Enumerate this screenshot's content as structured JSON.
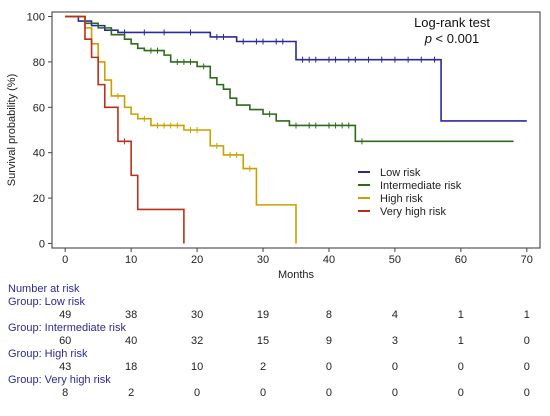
{
  "chart_data": {
    "type": "line",
    "step": true,
    "title": "",
    "annotation": {
      "line1": "Log-rank test",
      "p_italic": "p",
      "p_rest": " < 0.001"
    },
    "xlabel": "Months",
    "ylabel": "Survival probability (%)",
    "xlim": [
      -2,
      72
    ],
    "ylim": [
      -2,
      102
    ],
    "xticks": [
      0,
      10,
      20,
      30,
      40,
      50,
      60,
      70
    ],
    "yticks": [
      0,
      20,
      40,
      60,
      80,
      100
    ],
    "legend_position": "center-right",
    "series": [
      {
        "name": "Low risk",
        "color": "#2a2a9a",
        "steps": [
          [
            0,
            100
          ],
          [
            2,
            98
          ],
          [
            4,
            96
          ],
          [
            6,
            94
          ],
          [
            8,
            93
          ],
          [
            22,
            91
          ],
          [
            26,
            89
          ],
          [
            35,
            81
          ],
          [
            57,
            54
          ],
          [
            70,
            54
          ]
        ],
        "censored": [
          [
            9,
            93
          ],
          [
            12,
            93
          ],
          [
            15,
            93
          ],
          [
            19,
            93
          ],
          [
            23,
            91
          ],
          [
            24,
            91
          ],
          [
            27,
            89
          ],
          [
            29,
            89
          ],
          [
            30,
            89
          ],
          [
            32,
            89
          ],
          [
            33,
            89
          ],
          [
            36,
            81
          ],
          [
            37,
            81
          ],
          [
            38,
            81
          ],
          [
            40,
            81
          ],
          [
            41,
            81
          ],
          [
            43,
            81
          ],
          [
            44,
            81
          ],
          [
            46,
            81
          ],
          [
            48,
            81
          ],
          [
            50,
            81
          ],
          [
            52,
            81
          ],
          [
            54,
            81
          ],
          [
            56,
            81
          ],
          [
            57,
            56
          ]
        ],
        "end_x": 70
      },
      {
        "name": "Intermediate risk",
        "color": "#2f6a1c",
        "steps": [
          [
            0,
            100
          ],
          [
            3,
            97
          ],
          [
            5,
            95
          ],
          [
            7,
            92
          ],
          [
            9,
            90
          ],
          [
            10,
            88
          ],
          [
            11,
            86
          ],
          [
            12,
            85
          ],
          [
            15,
            83
          ],
          [
            16,
            80
          ],
          [
            20,
            78
          ],
          [
            22,
            73
          ],
          [
            23,
            70
          ],
          [
            24,
            68
          ],
          [
            25,
            64
          ],
          [
            26,
            61
          ],
          [
            28,
            59
          ],
          [
            30,
            57
          ],
          [
            32,
            54
          ],
          [
            34,
            52
          ],
          [
            44,
            45
          ],
          [
            68,
            45
          ]
        ],
        "censored": [
          [
            13,
            85
          ],
          [
            14,
            85
          ],
          [
            17,
            80
          ],
          [
            18,
            80
          ],
          [
            19,
            80
          ],
          [
            21,
            78
          ],
          [
            31,
            57
          ],
          [
            35,
            52
          ],
          [
            37,
            52
          ],
          [
            38,
            52
          ],
          [
            40,
            52
          ],
          [
            41,
            52
          ],
          [
            42,
            52
          ],
          [
            43,
            52
          ],
          [
            45,
            45
          ]
        ],
        "end_x": 68
      },
      {
        "name": "High risk",
        "color": "#c8a000",
        "steps": [
          [
            0,
            100
          ],
          [
            3,
            95
          ],
          [
            4,
            88
          ],
          [
            5,
            80
          ],
          [
            6,
            72
          ],
          [
            7,
            65
          ],
          [
            9,
            60
          ],
          [
            10,
            57
          ],
          [
            11,
            55
          ],
          [
            13,
            52
          ],
          [
            18,
            50
          ],
          [
            22,
            43
          ],
          [
            24,
            39
          ],
          [
            27,
            33
          ],
          [
            29,
            17
          ],
          [
            35,
            0
          ]
        ],
        "censored": [
          [
            8,
            65
          ],
          [
            12,
            55
          ],
          [
            14,
            52
          ],
          [
            15,
            52
          ],
          [
            16,
            52
          ],
          [
            17,
            52
          ],
          [
            19,
            50
          ],
          [
            20,
            50
          ],
          [
            23,
            43
          ],
          [
            25,
            39
          ],
          [
            26,
            39
          ],
          [
            28,
            33
          ]
        ],
        "end_x": 35
      },
      {
        "name": "Very high risk",
        "color": "#b8301c",
        "steps": [
          [
            0,
            100
          ],
          [
            3,
            90
          ],
          [
            4,
            82
          ],
          [
            5,
            70
          ],
          [
            6,
            60
          ],
          [
            8,
            45
          ],
          [
            10,
            30
          ],
          [
            11,
            15
          ],
          [
            18,
            0
          ]
        ],
        "censored": [
          [
            9,
            45
          ]
        ],
        "end_x": 18
      }
    ]
  },
  "risk_table": {
    "title": "Number at risk",
    "columns_months": [
      0,
      10,
      20,
      30,
      40,
      50,
      60,
      70
    ],
    "groups": [
      {
        "label": "Group: Low risk",
        "values": [
          "49",
          "38",
          "30",
          "19",
          "8",
          "4",
          "1",
          "1"
        ]
      },
      {
        "label": "Group: Intermediate risk",
        "values": [
          "60",
          "40",
          "32",
          "15",
          "9",
          "3",
          "1",
          "0"
        ]
      },
      {
        "label": "Group: High risk",
        "values": [
          "43",
          "18",
          "10",
          "2",
          "0",
          "0",
          "0",
          "0"
        ]
      },
      {
        "label": "Group: Very high risk",
        "values": [
          "8",
          "2",
          "0",
          "0",
          "0",
          "0",
          "0",
          "0"
        ]
      }
    ]
  }
}
